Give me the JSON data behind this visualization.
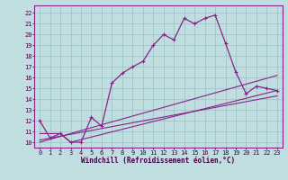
{
  "xlabel": "Windchill (Refroidissement éolien,°C)",
  "bg_color": "#c0dde0",
  "grid_color": "#a0c4c8",
  "line_color": "#882288",
  "x_ticks": [
    0,
    1,
    2,
    3,
    4,
    5,
    6,
    7,
    8,
    9,
    10,
    11,
    12,
    13,
    14,
    15,
    16,
    17,
    18,
    19,
    20,
    21,
    22,
    23
  ],
  "y_ticks": [
    10,
    11,
    12,
    13,
    14,
    15,
    16,
    17,
    18,
    19,
    20,
    21,
    22
  ],
  "xlim": [
    -0.5,
    23.5
  ],
  "ylim": [
    9.5,
    22.7
  ],
  "line1_x": [
    0,
    1,
    2,
    3,
    4,
    5,
    6,
    7,
    8,
    9,
    10,
    11,
    12,
    13,
    14,
    15,
    16,
    17,
    18,
    19,
    20,
    21,
    22,
    23
  ],
  "line1_y": [
    12.0,
    10.4,
    10.8,
    10.0,
    10.0,
    12.3,
    11.5,
    15.5,
    16.4,
    17.0,
    17.5,
    19.0,
    20.0,
    19.5,
    21.5,
    21.0,
    21.5,
    21.8,
    19.2,
    16.5,
    14.5,
    15.2,
    15.0,
    14.8
  ],
  "line2_x": [
    0,
    2,
    3,
    23
  ],
  "line2_y": [
    10.8,
    10.8,
    10.0,
    14.8
  ],
  "line3_x": [
    0,
    23
  ],
  "line3_y": [
    10.2,
    14.3
  ],
  "line4_x": [
    0,
    23
  ],
  "line4_y": [
    10.0,
    16.2
  ],
  "xlabel_fontsize": 5.5,
  "xlabel_color": "#440044",
  "tick_fontsize": 5.0,
  "figwidth": 3.2,
  "figheight": 2.0,
  "dpi": 100
}
